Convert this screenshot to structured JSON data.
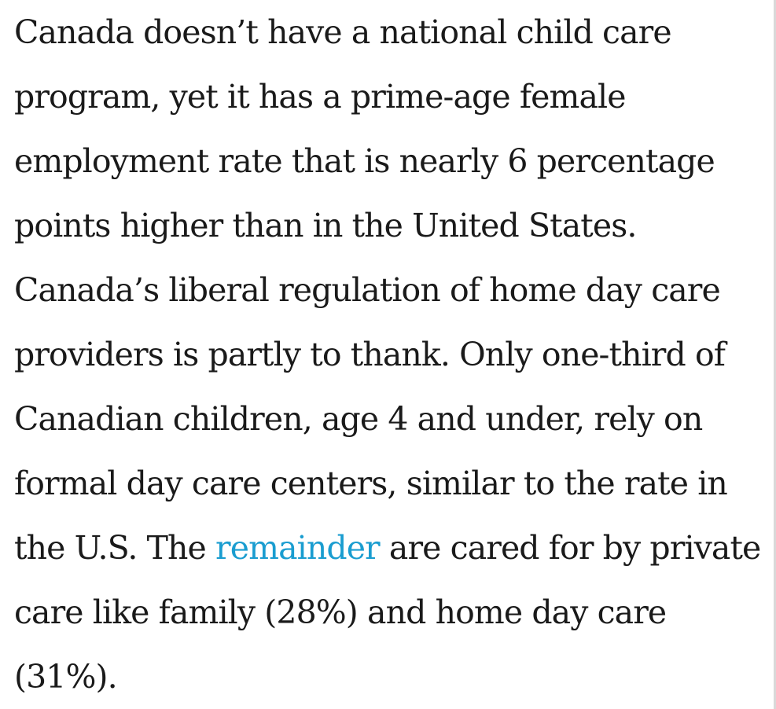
{
  "article": {
    "lines": [
      "Canada doesn’t have a national child care",
      "program, yet it has a prime-age female",
      "employment rate that is nearly 6 percentage",
      "points higher than in the United States.",
      "Canada’s liberal regulation of home day care",
      "providers is partly to thank. Only one-third of",
      "Canadian children, age 4 and under, rely on",
      "formal day care centers, similar to the rate in"
    ],
    "line9_before": "the U.S. The ",
    "link_text": "remainder",
    "line9_after": " are cared for by private",
    "line10": "care like family (28%) and home day care",
    "line11": "(31%)."
  },
  "colors": {
    "text": "#1a1a1a",
    "link": "#1a9dd0",
    "background": "#ffffff"
  }
}
